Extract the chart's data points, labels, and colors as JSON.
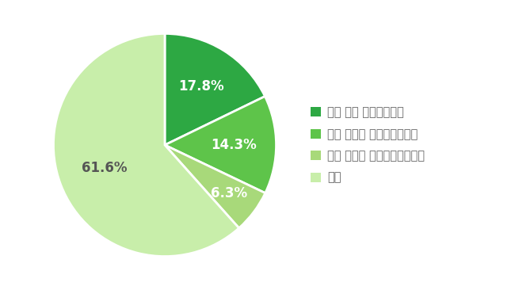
{
  "values": [
    17.8,
    14.3,
    6.3,
    61.6
  ],
  "colors": [
    "#2da843",
    "#5ec44a",
    "#a8d97a",
    "#c8eeaa"
  ],
  "labels": [
    "17.8%",
    "14.3%",
    "6.3%",
    "61.6%"
  ],
  "label_colors": [
    "#ffffff",
    "#ffffff",
    "#ffffff",
    "#555555"
  ],
  "legend_labels": [
    "ある 且つ 実行している",
    "ある しかし 実行していない",
    "ある しかし 続けられなかった",
    "ない"
  ],
  "startangle": 90,
  "background_color": "#ffffff",
  "label_fontsize": 12,
  "legend_fontsize": 10.5,
  "legend_text_color": "#666666"
}
